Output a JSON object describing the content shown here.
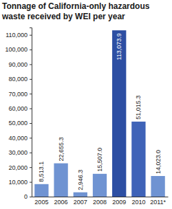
{
  "chart_data": {
    "type": "bar",
    "title": "Tonnage of California-only hazardous waste received by WEI per year",
    "categories": [
      "2005",
      "2006",
      "2007",
      "2008",
      "2009",
      "2010",
      "2011*"
    ],
    "values": [
      8513.1,
      22655.3,
      2946.3,
      15507.0,
      113073.9,
      51015.3,
      14023.0
    ],
    "value_labels": [
      "8,513.1",
      "22,655.3",
      "2,946.3",
      "15,507.0",
      "113,073.9",
      "51,015.3",
      "14,023.0"
    ],
    "colors": [
      "#6f93d2",
      "#6f93d2",
      "#6f93d2",
      "#6f93d2",
      "#2d4fa3",
      "#3f63b8",
      "#6f93d2"
    ],
    "data_labels": true,
    "ylim": [
      0,
      115000
    ],
    "yticks": [
      0,
      {
        "value": 10000,
        "label": "10,000"
      },
      {
        "value": 20000,
        "label": "20,000"
      },
      {
        "value": 30000,
        "label": "30,000"
      },
      {
        "value": 40000,
        "label": "40,000"
      },
      {
        "value": 50000,
        "label": "50,000"
      },
      {
        "value": 60000,
        "label": "60,000"
      },
      {
        "value": 70000,
        "label": "70,000"
      },
      {
        "value": 80000,
        "label": "80,000"
      },
      {
        "value": 90000,
        "label": "90,000"
      },
      {
        "value": 100000,
        "label": "100,000"
      },
      {
        "value": 110000,
        "label": "110,000"
      }
    ]
  }
}
